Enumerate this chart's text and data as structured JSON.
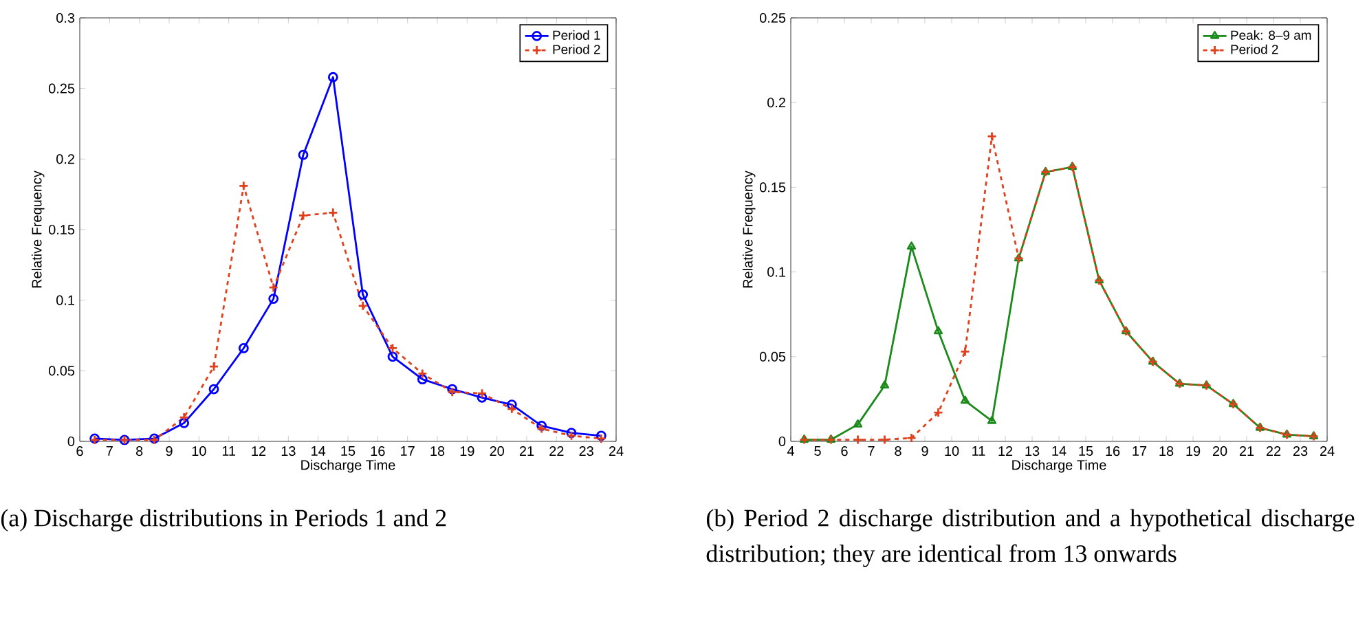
{
  "chart_data": [
    {
      "type": "line",
      "xlabel": "Discharge Time",
      "ylabel": "Relative Frequency",
      "xlim": [
        6,
        24
      ],
      "ylim": [
        0,
        0.3
      ],
      "xticks": [
        6,
        7,
        8,
        9,
        10,
        11,
        12,
        13,
        14,
        15,
        16,
        17,
        18,
        19,
        20,
        21,
        22,
        23,
        24
      ],
      "yticks": [
        0,
        0.05,
        0.1,
        0.15,
        0.2,
        0.25,
        0.3
      ],
      "legend": "top right",
      "grid": false,
      "x": [
        6.5,
        7.5,
        8.5,
        9.5,
        10.5,
        11.5,
        12.5,
        13.5,
        14.5,
        15.5,
        16.5,
        17.5,
        18.5,
        19.5,
        20.5,
        21.5,
        22.5,
        23.5
      ],
      "series": [
        {
          "name": "Period 1",
          "color": "#0000ff",
          "marker": "circle",
          "line_style": "solid",
          "values": [
            0.002,
            0.001,
            0.002,
            0.013,
            0.037,
            0.066,
            0.101,
            0.203,
            0.258,
            0.104,
            0.06,
            0.044,
            0.037,
            0.031,
            0.026,
            0.011,
            0.006,
            0.004
          ]
        },
        {
          "name": "Period 2",
          "color": "#e0401c",
          "marker": "cross",
          "line_style": "dashed",
          "values": [
            0.001,
            0.001,
            0.001,
            0.017,
            0.053,
            0.181,
            0.109,
            0.16,
            0.162,
            0.096,
            0.066,
            0.048,
            0.035,
            0.034,
            0.023,
            0.009,
            0.004,
            0.002
          ]
        }
      ],
      "annotations": [
        "(a) Discharge distributions in Periods 1 and 2"
      ]
    },
    {
      "type": "line",
      "xlabel": "Discharge Time",
      "ylabel": "Relative Frequency",
      "xlim": [
        4,
        24
      ],
      "ylim": [
        0,
        0.25
      ],
      "xticks": [
        4,
        5,
        6,
        7,
        8,
        9,
        10,
        11,
        12,
        13,
        14,
        15,
        16,
        17,
        18,
        19,
        20,
        21,
        22,
        23,
        24
      ],
      "yticks": [
        0,
        0.05,
        0.1,
        0.15,
        0.2,
        0.25
      ],
      "legend": "top right",
      "grid": false,
      "x": [
        4.5,
        5.5,
        6.5,
        7.5,
        8.5,
        9.5,
        10.5,
        11.5,
        12.5,
        13.5,
        14.5,
        15.5,
        16.5,
        17.5,
        18.5,
        19.5,
        20.5,
        21.5,
        22.5,
        23.5
      ],
      "series": [
        {
          "name": "Peak: 8–9 am",
          "color": "#1a8a1a",
          "marker": "triangle",
          "line_style": "solid",
          "values": [
            0.001,
            0.001,
            0.01,
            0.033,
            0.115,
            0.065,
            0.024,
            0.012,
            0.108,
            0.159,
            0.162,
            0.095,
            0.065,
            0.047,
            0.034,
            0.033,
            0.022,
            0.008,
            0.004,
            0.003
          ]
        },
        {
          "name": "Period 2",
          "color": "#e0401c",
          "marker": "cross",
          "line_style": "dashed",
          "values": [
            0.001,
            0.001,
            0.001,
            0.001,
            0.002,
            0.017,
            0.053,
            0.18,
            0.108,
            0.159,
            0.162,
            0.095,
            0.065,
            0.047,
            0.034,
            0.033,
            0.022,
            0.008,
            0.004,
            0.003
          ]
        }
      ],
      "annotations": [
        "(b) Period 2 discharge distribution and a hypothetical discharge distribution; they are identical from 13 onwards"
      ]
    }
  ]
}
